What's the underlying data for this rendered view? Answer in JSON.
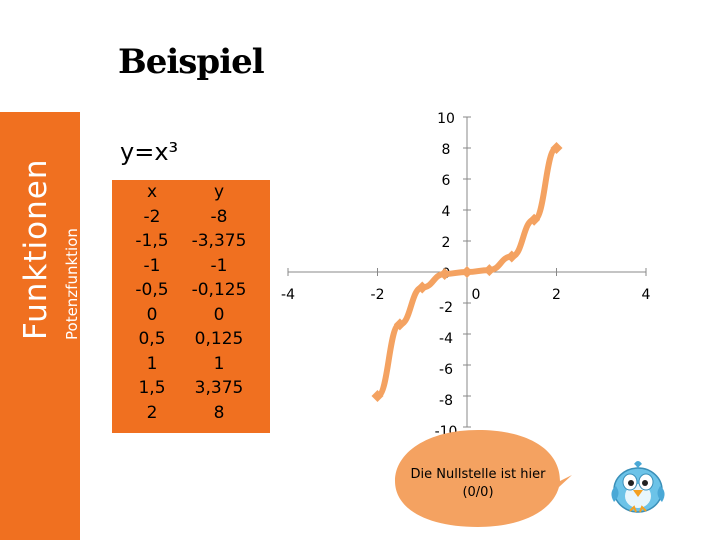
{
  "slide": {
    "heading": "Beispiel",
    "sidebar_title": "Funktionen",
    "sidebar_subtitle": "Potenzfunktion",
    "formula": "y=x³"
  },
  "value_table": {
    "headers": {
      "x": "x",
      "y": "y"
    },
    "x": [
      "-2",
      "-1,5",
      "-1",
      "-0,5",
      "0",
      "0,5",
      "1",
      "1,5",
      "2"
    ],
    "y": [
      "-8",
      "-3,375",
      "-1",
      "-0,125",
      "0",
      "0,125",
      "1",
      "3,375",
      "8"
    ]
  },
  "callout": {
    "text": "Die Nullstelle ist hier (0/0)"
  },
  "colors": {
    "accent": "#f07020",
    "line": "#f4a261",
    "bubble": "#f4a261",
    "axis": "#888888"
  },
  "icons": {
    "mascot": "bird-mascot-icon"
  },
  "chart_data": {
    "type": "line",
    "x": [
      -2,
      -1.5,
      -1,
      -0.5,
      0,
      0.5,
      1,
      1.5,
      2
    ],
    "values": [
      -8,
      -3.375,
      -1,
      -0.125,
      0,
      0.125,
      1,
      3.375,
      8
    ],
    "xlim": [
      -4,
      4
    ],
    "ylim": [
      -10,
      10
    ],
    "x_ticks": [
      -4,
      -2,
      0,
      2,
      4
    ],
    "y_ticks": [
      10,
      8,
      6,
      4,
      2,
      0,
      -2,
      -4,
      -6,
      -8,
      -10
    ],
    "x_tick_labels": [
      "-4",
      "-2",
      "0",
      "2",
      "4"
    ],
    "y_tick_labels": [
      "10",
      "8",
      "6",
      "4",
      "2",
      "0",
      "-2",
      "-4",
      "-6",
      "-8",
      "-10"
    ],
    "smooth": true,
    "markers": "diamond",
    "grid": false,
    "legend": "none"
  }
}
